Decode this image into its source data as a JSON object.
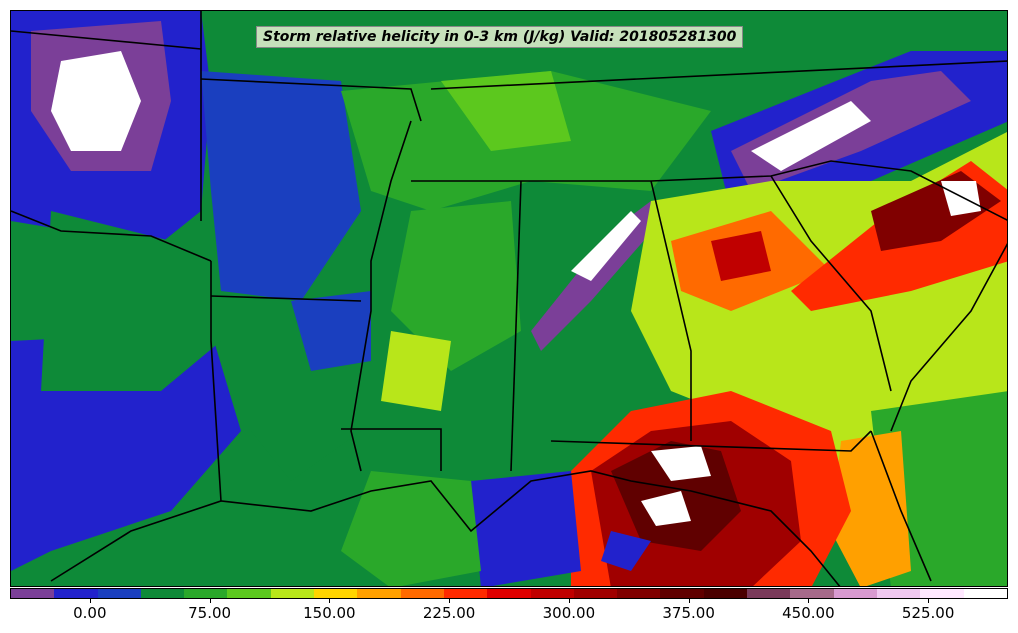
{
  "title": "Storm relative helicity in 0-3 km (J/kg) Valid: 201805281300",
  "colorbar": {
    "colors": [
      "#7b3f98",
      "#2222cc",
      "#1a3fbf",
      "#0e8a38",
      "#2aa82a",
      "#5cc81e",
      "#b8e61a",
      "#ffd400",
      "#ffa000",
      "#ff6a00",
      "#ff2a00",
      "#e00000",
      "#c00000",
      "#a00000",
      "#800000",
      "#600000",
      "#4a0000",
      "#7a3a5a",
      "#a66a8a",
      "#d89ad0",
      "#f0c8f0",
      "#ffe8ff",
      "#ffffff"
    ],
    "ticks": [
      {
        "label": "0.00",
        "value": 0
      },
      {
        "label": "75.00",
        "value": 75
      },
      {
        "label": "150.00",
        "value": 150
      },
      {
        "label": "225.00",
        "value": 225
      },
      {
        "label": "300.00",
        "value": 300
      },
      {
        "label": "375.00",
        "value": 375
      },
      {
        "label": "450.00",
        "value": 450
      },
      {
        "label": "525.00",
        "value": 525
      }
    ],
    "range": [
      -50,
      575
    ]
  }
}
